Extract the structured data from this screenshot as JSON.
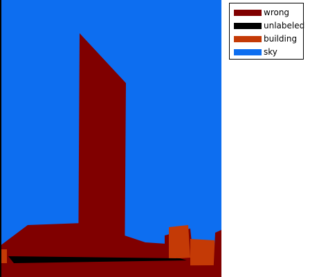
{
  "legend": {
    "items": [
      {
        "label": "wrong",
        "color": "#800000"
      },
      {
        "label": "unlabeled",
        "color": "#000000"
      },
      {
        "label": "building",
        "color": "#c43a06"
      },
      {
        "label": "sky",
        "color": "#0d6ef0"
      }
    ]
  },
  "segmentation": {
    "colors": {
      "sky": "#0d6ef0",
      "wrong": "#800000",
      "building": "#c43a06",
      "unlabeled": "#000000"
    }
  }
}
